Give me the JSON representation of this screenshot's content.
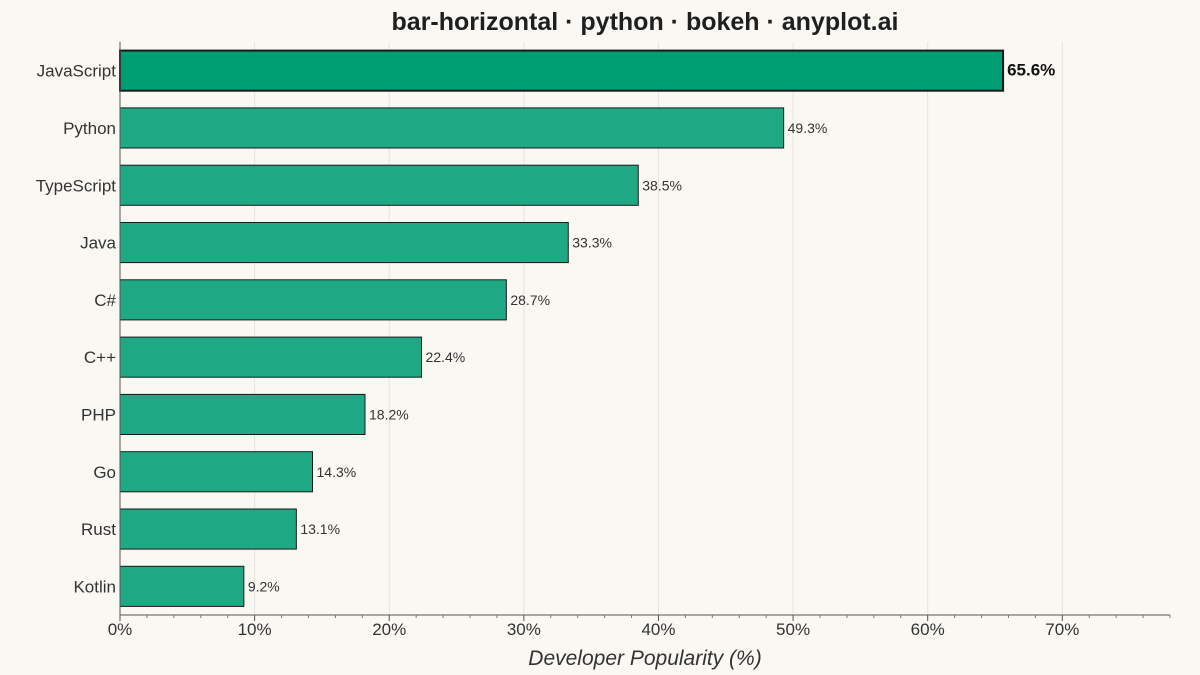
{
  "chart_data": {
    "type": "bar",
    "orientation": "horizontal",
    "title": "bar-horizontal · python · bokeh · anyplot.ai",
    "xlabel": "Developer Popularity (%)",
    "ylabel": "",
    "categories": [
      "JavaScript",
      "Python",
      "TypeScript",
      "Java",
      "C#",
      "C++",
      "PHP",
      "Go",
      "Rust",
      "Kotlin"
    ],
    "values": [
      65.6,
      49.3,
      38.5,
      33.3,
      28.7,
      22.4,
      18.2,
      14.3,
      13.1,
      9.2
    ],
    "data_labels": [
      "65.6%",
      "49.3%",
      "38.5%",
      "33.3%",
      "28.7%",
      "22.4%",
      "18.2%",
      "14.3%",
      "13.1%",
      "9.2%"
    ],
    "xlim": [
      0,
      78
    ],
    "x_ticks": [
      0,
      10,
      20,
      30,
      40,
      50,
      60,
      70
    ],
    "x_tick_labels": [
      "0%",
      "10%",
      "20%",
      "30%",
      "40%",
      "50%",
      "60%",
      "70%"
    ],
    "grid": true,
    "highlight_index": 0,
    "colors": {
      "bar": "#1FA884",
      "highlight_bar": "#009E73",
      "bar_outline": "#1a1a1a",
      "background": "#FAF8F2",
      "grid": "#e6e4dc"
    }
  }
}
